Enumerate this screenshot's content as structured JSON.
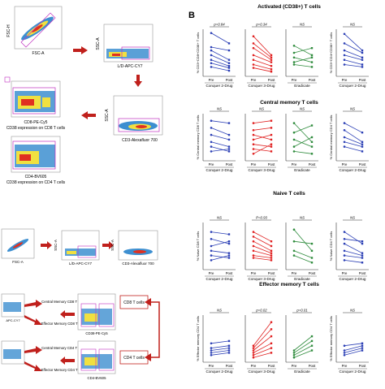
{
  "panel_b_letter": "B",
  "flow": {
    "fsc_h": "FSC-H",
    "fsc_a": "FSC-A",
    "ssc_a": "SSC-A",
    "ld_apc_cy7": "L/D-APC-CY7",
    "cd3_af700": "CD3-Alexafluor 700",
    "cd8_pe_cy5": "CD8-PE-Cy5",
    "cd38_cd8_caption": "CD38 expression on CD8 T cells",
    "cd4_bv605": "CD4-BV605",
    "cd38_cd4_caption": "CD38 expression on CD4 T cells",
    "cd38_pe_cy5": "CD38-PE-Cy5",
    "cd4_bv605_lower": "CD4-BV605",
    "apc_cy7": "APC-CY7",
    "cd8_t_cells": "CD8 T cells",
    "cd4_t_cells": "CD4 T cells",
    "central_memory_cd8": "Central Memory CD8 T cells",
    "effector_memory_cd8": "Effector Memory CD8 T cells",
    "central_memory_cd4": "Central Memory CD4 T cells",
    "effector_memory_cd4": "Effector Memory CD4 T cells"
  },
  "chart_data": [
    {
      "type": "line",
      "row": "Activated (CD38+) T cells",
      "group": "Conquer 2-Drug",
      "pval": "p=0.84",
      "ylabel": "% CD3+CD8+CD38+ T cells",
      "xticks": [
        "Pre",
        "Post"
      ],
      "color": "#2b3fb5",
      "series": [
        {
          "values": [
            0.92,
            0.7
          ]
        },
        {
          "values": [
            0.62,
            0.55
          ]
        },
        {
          "values": [
            0.55,
            0.35
          ]
        },
        {
          "values": [
            0.45,
            0.28
          ]
        },
        {
          "values": [
            0.35,
            0.22
          ]
        },
        {
          "values": [
            0.28,
            0.18
          ]
        },
        {
          "values": [
            0.2,
            0.12
          ]
        }
      ]
    },
    {
      "type": "line",
      "row": "Activated (CD38+) T cells",
      "group": "Conquer 3-Drug",
      "pval": "p=0.34",
      "xticks": [
        "Pre",
        "Post"
      ],
      "color": "#e02020",
      "series": [
        {
          "values": [
            0.85,
            0.45
          ]
        },
        {
          "values": [
            0.7,
            0.4
          ]
        },
        {
          "values": [
            0.6,
            0.35
          ]
        },
        {
          "values": [
            0.45,
            0.3
          ]
        },
        {
          "values": [
            0.35,
            0.22
          ]
        },
        {
          "values": [
            0.25,
            0.15
          ]
        },
        {
          "values": [
            0.18,
            0.1
          ]
        }
      ]
    },
    {
      "type": "line",
      "row": "Activated (CD38+) T cells",
      "group": "Eradicate",
      "pval": "NS",
      "xticks": [
        "Pre",
        "Post"
      ],
      "color": "#2e8b3c",
      "series": [
        {
          "values": [
            0.65,
            0.45
          ]
        },
        {
          "values": [
            0.5,
            0.6
          ]
        },
        {
          "values": [
            0.4,
            0.3
          ]
        },
        {
          "values": [
            0.3,
            0.4
          ]
        },
        {
          "values": [
            0.25,
            0.2
          ]
        }
      ]
    },
    {
      "type": "line",
      "row": "Activated (CD38+) T cells",
      "group": "Conquer 2-Drug",
      "pval": "NS",
      "ylabel": "% CD3+CD4+CD38+ T cells",
      "xticks": [
        "Pre",
        "Post"
      ],
      "color": "#2b3fb5",
      "series": [
        {
          "values": [
            0.9,
            0.55
          ]
        },
        {
          "values": [
            0.7,
            0.5
          ]
        },
        {
          "values": [
            0.55,
            0.4
          ]
        },
        {
          "values": [
            0.45,
            0.35
          ]
        },
        {
          "values": [
            0.35,
            0.25
          ]
        },
        {
          "values": [
            0.25,
            0.2
          ]
        }
      ]
    },
    {
      "type": "line",
      "row": "Central memory T cells",
      "group": "Conquer 2-Drug",
      "pval": "NS",
      "ylabel": "% Central memory CD8 T cells",
      "xticks": [
        "Pre",
        "Post"
      ],
      "color": "#2b3fb5",
      "series": [
        {
          "values": [
            0.85,
            0.8
          ]
        },
        {
          "values": [
            0.7,
            0.55
          ]
        },
        {
          "values": [
            0.55,
            0.45
          ]
        },
        {
          "values": [
            0.4,
            0.3
          ]
        },
        {
          "values": [
            0.3,
            0.2
          ]
        },
        {
          "values": [
            0.2,
            0.25
          ]
        }
      ]
    },
    {
      "type": "line",
      "row": "Central memory T cells",
      "group": "Conquer 3-Drug",
      "pval": "NS",
      "xticks": [
        "Pre",
        "Post"
      ],
      "color": "#e02020",
      "series": [
        {
          "values": [
            0.8,
            0.85
          ]
        },
        {
          "values": [
            0.65,
            0.7
          ]
        },
        {
          "values": [
            0.55,
            0.45
          ]
        },
        {
          "values": [
            0.45,
            0.55
          ]
        },
        {
          "values": [
            0.35,
            0.3
          ]
        },
        {
          "values": [
            0.25,
            0.2
          ]
        },
        {
          "values": [
            0.15,
            0.35
          ]
        }
      ]
    },
    {
      "type": "line",
      "row": "Central memory T cells",
      "group": "Eradicate",
      "pval": "NS",
      "xticks": [
        "Pre",
        "Post"
      ],
      "color": "#2e8b3c",
      "series": [
        {
          "values": [
            0.8,
            0.4
          ]
        },
        {
          "values": [
            0.6,
            0.75
          ]
        },
        {
          "values": [
            0.45,
            0.3
          ]
        },
        {
          "values": [
            0.3,
            0.5
          ]
        },
        {
          "values": [
            0.2,
            0.15
          ]
        }
      ]
    },
    {
      "type": "line",
      "row": "Central memory T cells",
      "group": "Conquer 2-Drug",
      "pval": "NS",
      "ylabel": "% Central memory CD4 T cells",
      "xticks": [
        "Pre",
        "Post"
      ],
      "color": "#2b3fb5",
      "series": [
        {
          "values": [
            0.8,
            0.6
          ]
        },
        {
          "values": [
            0.65,
            0.4
          ]
        },
        {
          "values": [
            0.5,
            0.35
          ]
        },
        {
          "values": [
            0.4,
            0.3
          ]
        },
        {
          "values": [
            0.3,
            0.2
          ]
        }
      ]
    },
    {
      "type": "line",
      "row": "Naive T cells",
      "group": "Conquer 2-Drug",
      "pval": "NS",
      "ylabel": "% Naive CD8 T cells",
      "xticks": [
        "Pre",
        "Post"
      ],
      "color": "#2b3fb5",
      "series": [
        {
          "values": [
            0.8,
            0.75
          ]
        },
        {
          "values": [
            0.65,
            0.55
          ]
        },
        {
          "values": [
            0.5,
            0.6
          ]
        },
        {
          "values": [
            0.4,
            0.35
          ]
        },
        {
          "values": [
            0.3,
            0.25
          ]
        },
        {
          "values": [
            0.2,
            0.3
          ]
        }
      ]
    },
    {
      "type": "line",
      "row": "Naive T cells",
      "group": "Conquer 3-Drug",
      "pval": "P=0.93",
      "xticks": [
        "Pre",
        "Post"
      ],
      "color": "#e02020",
      "series": [
        {
          "values": [
            0.8,
            0.6
          ]
        },
        {
          "values": [
            0.7,
            0.5
          ]
        },
        {
          "values": [
            0.6,
            0.4
          ]
        },
        {
          "values": [
            0.5,
            0.35
          ]
        },
        {
          "values": [
            0.4,
            0.3
          ]
        },
        {
          "values": [
            0.3,
            0.25
          ]
        },
        {
          "values": [
            0.25,
            0.2
          ]
        }
      ]
    },
    {
      "type": "line",
      "row": "Naive T cells",
      "group": "Eradicate",
      "pval": "NS",
      "xticks": [
        "Pre",
        "Post"
      ],
      "color": "#2e8b3c",
      "series": [
        {
          "values": [
            0.85,
            0.4
          ]
        },
        {
          "values": [
            0.6,
            0.55
          ]
        },
        {
          "values": [
            0.4,
            0.25
          ]
        },
        {
          "values": [
            0.3,
            0.15
          ]
        }
      ]
    },
    {
      "type": "line",
      "row": "Naive T cells",
      "group": "Conquer 2-Drug",
      "pval": "NS",
      "ylabel": "% Naive CD4 T cells",
      "xticks": [
        "Pre",
        "Post"
      ],
      "color": "#2b3fb5",
      "series": [
        {
          "values": [
            0.8,
            0.55
          ]
        },
        {
          "values": [
            0.65,
            0.6
          ]
        },
        {
          "values": [
            0.55,
            0.35
          ]
        },
        {
          "values": [
            0.4,
            0.3
          ]
        },
        {
          "values": [
            0.3,
            0.25
          ]
        },
        {
          "values": [
            0.2,
            0.15
          ]
        }
      ]
    },
    {
      "type": "line",
      "row": "Effector memory T cells",
      "group": "Conquer 2-Drug",
      "pval": "NS",
      "ylabel": "% Effector memory CD4 T cells",
      "xticks": [
        "Pre",
        "Post"
      ],
      "color": "#2b3fb5",
      "series": [
        {
          "values": [
            0.4,
            0.45
          ]
        },
        {
          "values": [
            0.3,
            0.35
          ]
        },
        {
          "values": [
            0.25,
            0.3
          ]
        },
        {
          "values": [
            0.2,
            0.25
          ]
        },
        {
          "values": [
            0.15,
            0.2
          ]
        }
      ]
    },
    {
      "type": "line",
      "row": "Effector memory T cells",
      "group": "Conquer 3-Drug",
      "pval": "p=0.02",
      "xticks": [
        "Pre",
        "Post"
      ],
      "color": "#e02020",
      "series": [
        {
          "values": [
            0.35,
            0.85
          ]
        },
        {
          "values": [
            0.3,
            0.7
          ]
        },
        {
          "values": [
            0.25,
            0.55
          ]
        },
        {
          "values": [
            0.2,
            0.4
          ]
        },
        {
          "values": [
            0.15,
            0.3
          ]
        },
        {
          "values": [
            0.1,
            0.2
          ]
        }
      ]
    },
    {
      "type": "line",
      "row": "Effector memory T cells",
      "group": "Eradicate",
      "pval": "p=0.01",
      "xticks": [
        "Pre",
        "Post"
      ],
      "color": "#2e8b3c",
      "series": [
        {
          "values": [
            0.25,
            0.55
          ]
        },
        {
          "values": [
            0.2,
            0.45
          ]
        },
        {
          "values": [
            0.15,
            0.35
          ]
        },
        {
          "values": [
            0.1,
            0.25
          ]
        }
      ]
    },
    {
      "type": "line",
      "row": "Effector memory T cells",
      "group": "Conquer 2-Drug",
      "pval": "NS",
      "ylabel": "% Effector memory CD4 T cells",
      "xticks": [
        "Pre",
        "Post"
      ],
      "color": "#2b3fb5",
      "series": [
        {
          "values": [
            0.35,
            0.4
          ]
        },
        {
          "values": [
            0.25,
            0.35
          ]
        },
        {
          "values": [
            0.2,
            0.3
          ]
        },
        {
          "values": [
            0.15,
            0.25
          ]
        }
      ]
    }
  ]
}
